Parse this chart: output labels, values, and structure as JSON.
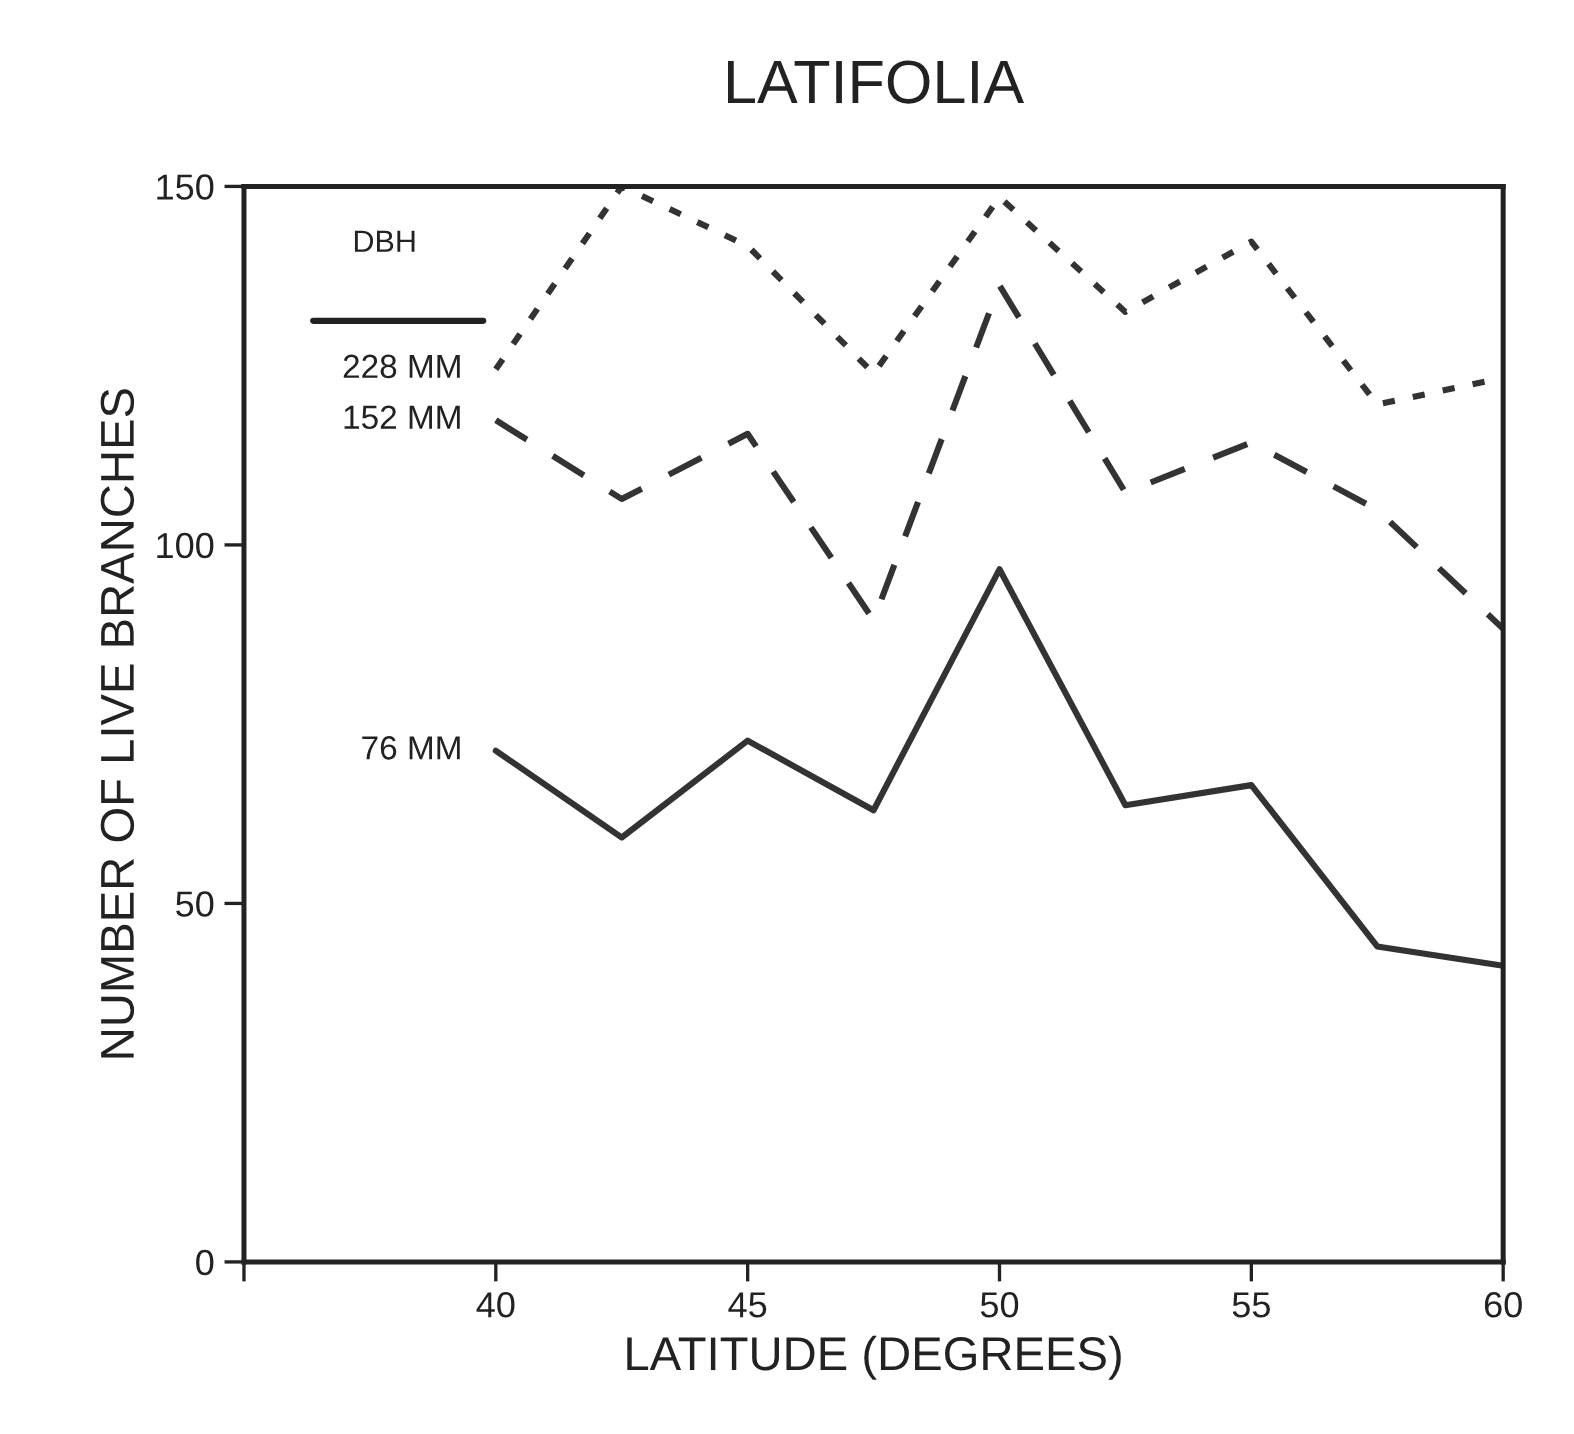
{
  "chart_data": {
    "type": "line",
    "title": "LATIFOLIA",
    "xlabel": "LATITUDE (DEGREES)",
    "ylabel": "NUMBER OF LIVE BRANCHES",
    "legend_title": "DBH",
    "x": [
      40,
      42.5,
      45,
      47.5,
      50,
      52.5,
      55,
      57.5,
      60
    ],
    "series": [
      {
        "name": "228 MM",
        "color": "#333333",
        "line_style": "dotted",
        "values": [
          124.5,
          150,
          141.7,
          123.9,
          148.5,
          132.5,
          142.3,
          119.6,
          123.3
        ]
      },
      {
        "name": "152 MM",
        "color": "#333333",
        "line_style": "dashed",
        "values": [
          117.4,
          106.4,
          115.5,
          89.5,
          136.2,
          107.3,
          114.3,
          104.9,
          88.3
        ]
      },
      {
        "name": "76 MM",
        "color": "#333333",
        "line_style": "solid",
        "values": [
          71.3,
          59.2,
          72.7,
          63,
          96.6,
          63.7,
          66.5,
          44,
          41.3
        ]
      }
    ],
    "xlim": [
      35,
      60
    ],
    "ylim": [
      0,
      150
    ],
    "xticks": [
      {
        "value": 35,
        "label": null
      },
      40,
      45,
      50,
      55,
      60
    ],
    "yticks": [
      0,
      50,
      100,
      150
    ],
    "grid": false,
    "legend": false,
    "marker": "none"
  }
}
